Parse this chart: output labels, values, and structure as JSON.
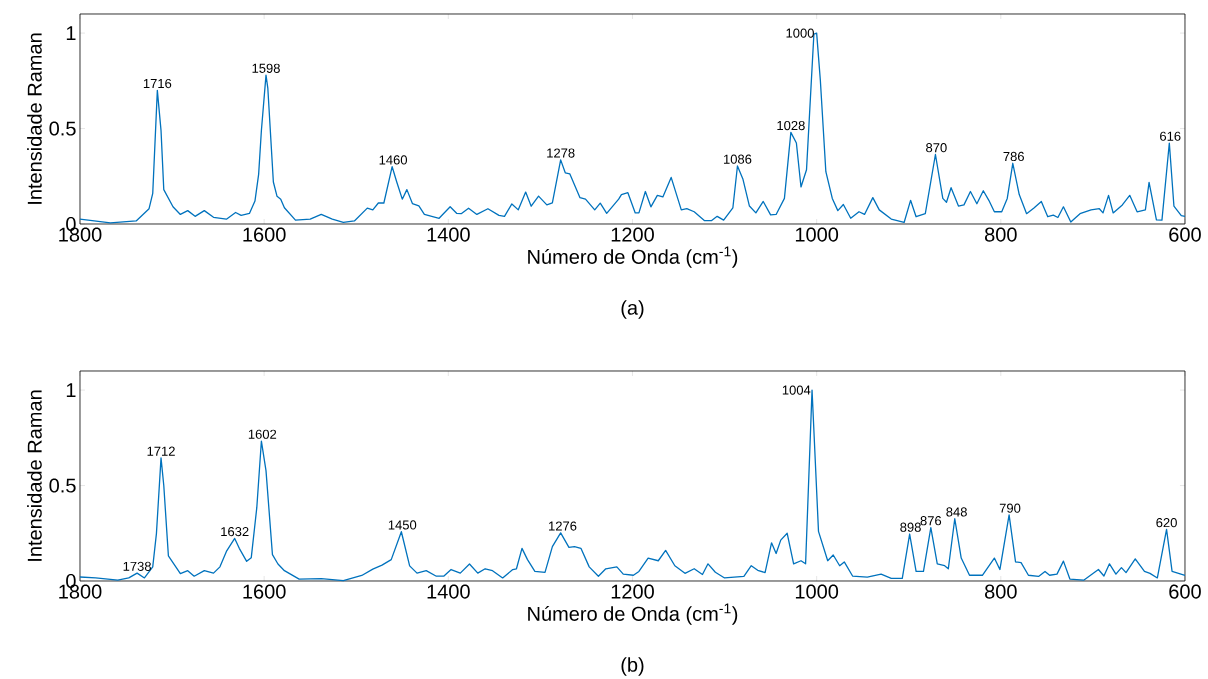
{
  "chart_data": [
    {
      "type": "line",
      "xlabel": "Número de Onda (cm$^{-1}$)",
      "ylabel": "Intensidade Raman",
      "xlim": [
        1800,
        600
      ],
      "ylim": [
        0,
        1.1
      ],
      "xticks": [
        1800,
        1600,
        1400,
        1200,
        1000,
        800,
        600
      ],
      "yticks": [
        0,
        0.5,
        1
      ],
      "color": "#0072bd",
      "x": [
        1800,
        1767,
        1739,
        1725,
        1721,
        1716,
        1712,
        1709,
        1699,
        1691,
        1683,
        1675,
        1665,
        1655,
        1641,
        1631,
        1625,
        1616,
        1610,
        1606,
        1603,
        1598,
        1596,
        1590,
        1586,
        1582,
        1578,
        1566,
        1550,
        1538,
        1526,
        1514,
        1502,
        1488,
        1482,
        1476,
        1470,
        1461,
        1456,
        1450,
        1445,
        1439,
        1432,
        1426,
        1410,
        1398,
        1391,
        1386,
        1378,
        1369,
        1357,
        1345,
        1339,
        1331,
        1324,
        1316,
        1310,
        1302,
        1293,
        1287,
        1278,
        1273,
        1268,
        1257,
        1251,
        1241,
        1235,
        1228,
        1215,
        1212,
        1205,
        1197,
        1193,
        1186,
        1180,
        1173,
        1167,
        1158,
        1147,
        1141,
        1133,
        1122,
        1114,
        1108,
        1101,
        1091,
        1086,
        1080,
        1073,
        1066,
        1058,
        1050,
        1044,
        1035,
        1028,
        1022,
        1017,
        1011,
        1003,
        1000,
        996,
        990,
        983,
        977,
        971,
        963,
        954,
        948,
        939,
        932,
        919,
        905,
        898,
        892,
        882,
        871,
        863,
        859,
        854,
        846,
        840,
        833,
        826,
        819,
        813,
        807,
        799,
        793,
        787,
        780,
        772,
        764,
        756,
        749,
        743,
        738,
        732,
        724,
        714,
        702,
        693,
        689,
        683,
        678,
        668,
        660,
        652,
        643,
        639,
        631,
        625,
        617,
        612,
        604,
        600
      ],
      "values": [
        0.025,
        0.006,
        0.016,
        0.08,
        0.16,
        0.7,
        0.49,
        0.18,
        0.09,
        0.05,
        0.07,
        0.04,
        0.07,
        0.035,
        0.025,
        0.06,
        0.045,
        0.055,
        0.12,
        0.26,
        0.49,
        0.78,
        0.71,
        0.22,
        0.145,
        0.13,
        0.085,
        0.02,
        0.025,
        0.05,
        0.025,
        0.008,
        0.016,
        0.083,
        0.074,
        0.11,
        0.11,
        0.3,
        0.22,
        0.13,
        0.18,
        0.107,
        0.095,
        0.05,
        0.03,
        0.09,
        0.056,
        0.054,
        0.083,
        0.05,
        0.08,
        0.045,
        0.04,
        0.105,
        0.074,
        0.167,
        0.093,
        0.146,
        0.1,
        0.11,
        0.336,
        0.268,
        0.262,
        0.138,
        0.13,
        0.074,
        0.109,
        0.056,
        0.13,
        0.154,
        0.164,
        0.058,
        0.058,
        0.17,
        0.09,
        0.15,
        0.142,
        0.244,
        0.074,
        0.08,
        0.064,
        0.018,
        0.018,
        0.04,
        0.02,
        0.084,
        0.304,
        0.234,
        0.094,
        0.058,
        0.118,
        0.048,
        0.05,
        0.134,
        0.48,
        0.424,
        0.194,
        0.284,
        0.994,
        1.0,
        0.754,
        0.274,
        0.134,
        0.07,
        0.102,
        0.03,
        0.064,
        0.05,
        0.138,
        0.074,
        0.026,
        0.008,
        0.124,
        0.038,
        0.054,
        0.364,
        0.134,
        0.114,
        0.19,
        0.094,
        0.1,
        0.17,
        0.106,
        0.174,
        0.124,
        0.064,
        0.064,
        0.134,
        0.318,
        0.154,
        0.054,
        0.084,
        0.118,
        0.038,
        0.046,
        0.034,
        0.09,
        0.01,
        0.054,
        0.074,
        0.08,
        0.058,
        0.15,
        0.058,
        0.1,
        0.15,
        0.064,
        0.074,
        0.218,
        0.022,
        0.02,
        0.424,
        0.094,
        0.044,
        0.04
      ],
      "annotations": [
        {
          "text": "1716",
          "x": 1716,
          "y": 0.7
        },
        {
          "text": "1598",
          "x": 1598,
          "y": 0.78
        },
        {
          "text": "1460",
          "x": 1460,
          "y": 0.3
        },
        {
          "text": "1278",
          "x": 1278,
          "y": 0.336
        },
        {
          "text": "1086",
          "x": 1086,
          "y": 0.304
        },
        {
          "text": "1028",
          "x": 1028,
          "y": 0.48
        },
        {
          "text": "1000",
          "x": 1000,
          "y": 1.0
        },
        {
          "text": "870",
          "x": 870,
          "y": 0.364
        },
        {
          "text": "786",
          "x": 786,
          "y": 0.318
        },
        {
          "text": "616",
          "x": 616,
          "y": 0.424
        },
        "(a)"
      ]
    },
    {
      "type": "line",
      "xlabel": "Número de Onda (cm$^{-1}$)",
      "ylabel": "Intensidade Raman",
      "xlim": [
        1800,
        600
      ],
      "ylim": [
        0,
        1.1
      ],
      "xticks": [
        1800,
        1600,
        1400,
        1200,
        1000,
        800,
        600
      ],
      "yticks": [
        0,
        0.5,
        1
      ],
      "color": "#0072bd",
      "x": [
        1800,
        1783,
        1759,
        1747,
        1738,
        1730,
        1721,
        1717,
        1712,
        1709,
        1704,
        1691,
        1683,
        1676,
        1665,
        1655,
        1648,
        1641,
        1632,
        1627,
        1619,
        1614,
        1608,
        1603,
        1598,
        1591,
        1585,
        1578,
        1562,
        1538,
        1514,
        1494,
        1482,
        1472,
        1462,
        1451,
        1442,
        1434,
        1424,
        1413,
        1405,
        1397,
        1387,
        1377,
        1368,
        1360,
        1352,
        1341,
        1330,
        1326,
        1320,
        1314,
        1306,
        1295,
        1287,
        1278,
        1269,
        1263,
        1256,
        1247,
        1237,
        1229,
        1217,
        1210,
        1199,
        1193,
        1183,
        1172,
        1164,
        1154,
        1143,
        1133,
        1124,
        1118,
        1110,
        1100,
        1079,
        1071,
        1064,
        1056,
        1049,
        1044,
        1039,
        1032,
        1025,
        1017,
        1012,
        1005,
        998,
        988,
        982,
        975,
        970,
        961,
        945,
        930,
        919,
        907,
        899,
        892,
        884,
        876,
        869,
        861,
        857,
        850,
        843,
        834,
        820,
        807,
        801,
        791,
        784,
        778,
        770,
        759,
        752,
        747,
        739,
        732,
        725,
        710,
        694,
        688,
        682,
        675,
        669,
        664,
        654,
        644,
        638,
        630,
        620,
        614,
        600
      ],
      "values": [
        0.021,
        0.016,
        0.004,
        0.016,
        0.041,
        0.016,
        0.074,
        0.248,
        0.645,
        0.5,
        0.132,
        0.039,
        0.054,
        0.025,
        0.054,
        0.041,
        0.074,
        0.155,
        0.223,
        0.171,
        0.103,
        0.122,
        0.384,
        0.733,
        0.578,
        0.138,
        0.089,
        0.054,
        0.01,
        0.012,
        0.002,
        0.029,
        0.062,
        0.083,
        0.112,
        0.258,
        0.079,
        0.041,
        0.054,
        0.025,
        0.025,
        0.06,
        0.041,
        0.089,
        0.041,
        0.064,
        0.054,
        0.016,
        0.06,
        0.064,
        0.171,
        0.112,
        0.05,
        0.045,
        0.18,
        0.252,
        0.176,
        0.18,
        0.171,
        0.074,
        0.025,
        0.064,
        0.074,
        0.036,
        0.03,
        0.05,
        0.12,
        0.106,
        0.16,
        0.08,
        0.04,
        0.064,
        0.034,
        0.09,
        0.046,
        0.016,
        0.024,
        0.08,
        0.056,
        0.044,
        0.2,
        0.144,
        0.214,
        0.25,
        0.09,
        0.106,
        0.09,
        1.0,
        0.26,
        0.106,
        0.136,
        0.08,
        0.1,
        0.026,
        0.02,
        0.036,
        0.014,
        0.014,
        0.246,
        0.05,
        0.05,
        0.28,
        0.09,
        0.08,
        0.064,
        0.326,
        0.12,
        0.03,
        0.03,
        0.12,
        0.06,
        0.346,
        0.1,
        0.096,
        0.03,
        0.024,
        0.05,
        0.03,
        0.036,
        0.104,
        0.01,
        0.004,
        0.06,
        0.026,
        0.09,
        0.036,
        0.07,
        0.044,
        0.116,
        0.05,
        0.04,
        0.016,
        0.27,
        0.05,
        0.03
      ],
      "annotations": [
        {
          "text": "1738",
          "x": 1738,
          "y": 0.041
        },
        {
          "text": "1712",
          "x": 1712,
          "y": 0.645
        },
        {
          "text": "1632",
          "x": 1632,
          "y": 0.223
        },
        {
          "text": "1602",
          "x": 1602,
          "y": 0.733
        },
        {
          "text": "1450",
          "x": 1450,
          "y": 0.258
        },
        {
          "text": "1276",
          "x": 1276,
          "y": 0.252
        },
        {
          "text": "1004",
          "x": 1004,
          "y": 1.0
        },
        {
          "text": "898",
          "x": 898,
          "y": 0.246
        },
        {
          "text": "876",
          "x": 876,
          "y": 0.28
        },
        {
          "text": "848",
          "x": 848,
          "y": 0.326
        },
        {
          "text": "790",
          "x": 790,
          "y": 0.346
        },
        {
          "text": "620",
          "x": 620,
          "y": 0.27
        },
        "(b)"
      ]
    }
  ]
}
